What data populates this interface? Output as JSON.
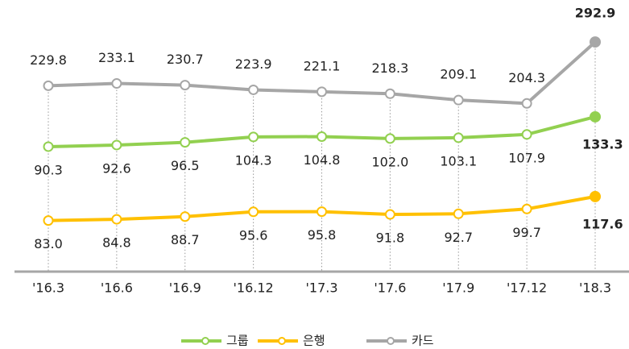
{
  "chart_data": {
    "type": "line",
    "categories": [
      "'16.3",
      "'16.6",
      "'16.9",
      "'16.12",
      "'17.3",
      "'17.6",
      "'17.9",
      "'17.12",
      "'18.3"
    ],
    "series": [
      {
        "name": "그룹",
        "color": "#92d050",
        "values": [
          90.3,
          92.6,
          96.5,
          104.3,
          104.8,
          102.0,
          103.1,
          107.9,
          133.3
        ],
        "value_labels": [
          "90.3",
          "92.6",
          "96.5",
          "104.3",
          "104.8",
          "102.0",
          "103.1",
          "107.9",
          "133.3"
        ]
      },
      {
        "name": "은행",
        "color": "#ffc000",
        "values": [
          83.0,
          84.8,
          88.7,
          95.6,
          95.8,
          91.8,
          92.7,
          99.7,
          117.6
        ],
        "value_labels": [
          "83.0",
          "84.8",
          "88.7",
          "95.6",
          "95.8",
          "91.8",
          "92.7",
          "99.7",
          "117.6"
        ]
      },
      {
        "name": "카드",
        "color": "#a6a6a6",
        "values": [
          229.8,
          233.1,
          230.7,
          223.9,
          221.1,
          218.3,
          209.1,
          204.3,
          292.9
        ],
        "value_labels": [
          "229.8",
          "233.1",
          "230.7",
          "223.9",
          "221.1",
          "218.3",
          "209.1",
          "204.3",
          "292.9"
        ]
      }
    ]
  }
}
